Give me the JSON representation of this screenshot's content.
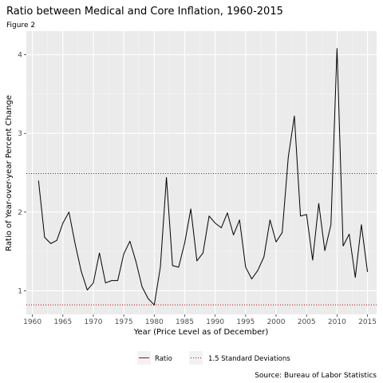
{
  "chart_data": {
    "type": "line",
    "title": "Ratio between Medical and Core Inflation, 1960-2015",
    "subtitle": "Figure 2",
    "xlabel": "Year (Price Level as of December)",
    "ylabel": "Ratio of Year-over-year Percent Change",
    "caption": "Source: Bureau of Labor Statistics",
    "xlim": [
      1959.0,
      2016.5
    ],
    "ylim": [
      0.7,
      4.3
    ],
    "x_ticks": [
      1960,
      1965,
      1970,
      1975,
      1980,
      1985,
      1990,
      1995,
      2000,
      2005,
      2010,
      2015
    ],
    "y_ticks": [
      1,
      2,
      3,
      4
    ],
    "grid": true,
    "legend_position": "bottom",
    "series": [
      {
        "name": "Ratio",
        "color": "#000000",
        "style": "solid",
        "x": [
          1961,
          1962,
          1963,
          1964,
          1965,
          1966,
          1967,
          1968,
          1969,
          1970,
          1971,
          1972,
          1973,
          1974,
          1975,
          1976,
          1977,
          1978,
          1979,
          1980,
          1981,
          1982,
          1983,
          1984,
          1985,
          1986,
          1987,
          1988,
          1989,
          1990,
          1991,
          1992,
          1993,
          1994,
          1995,
          1996,
          1997,
          1998,
          1999,
          2000,
          2001,
          2002,
          2003,
          2004,
          2005,
          2006,
          2007,
          2008,
          2009,
          2010,
          2011,
          2012,
          2013,
          2014,
          2015
        ],
        "values": [
          2.4,
          1.68,
          1.6,
          1.64,
          1.86,
          2.0,
          1.6,
          1.25,
          1.01,
          1.1,
          1.48,
          1.1,
          1.13,
          1.13,
          1.47,
          1.63,
          1.37,
          1.05,
          0.9,
          0.82,
          1.3,
          2.44,
          1.32,
          1.3,
          1.61,
          2.04,
          1.38,
          1.48,
          1.95,
          1.86,
          1.8,
          1.99,
          1.71,
          1.9,
          1.3,
          1.15,
          1.26,
          1.43,
          1.9,
          1.62,
          1.74,
          2.7,
          3.22,
          1.95,
          1.97,
          1.39,
          2.11,
          1.51,
          1.84,
          4.08,
          1.57,
          1.72,
          1.17,
          1.84,
          1.24
        ]
      },
      {
        "name": "1.5 Standard Deviations",
        "color": "#c00000",
        "style": "dotted",
        "hlines": [
          2.49,
          0.82
        ]
      }
    ]
  }
}
